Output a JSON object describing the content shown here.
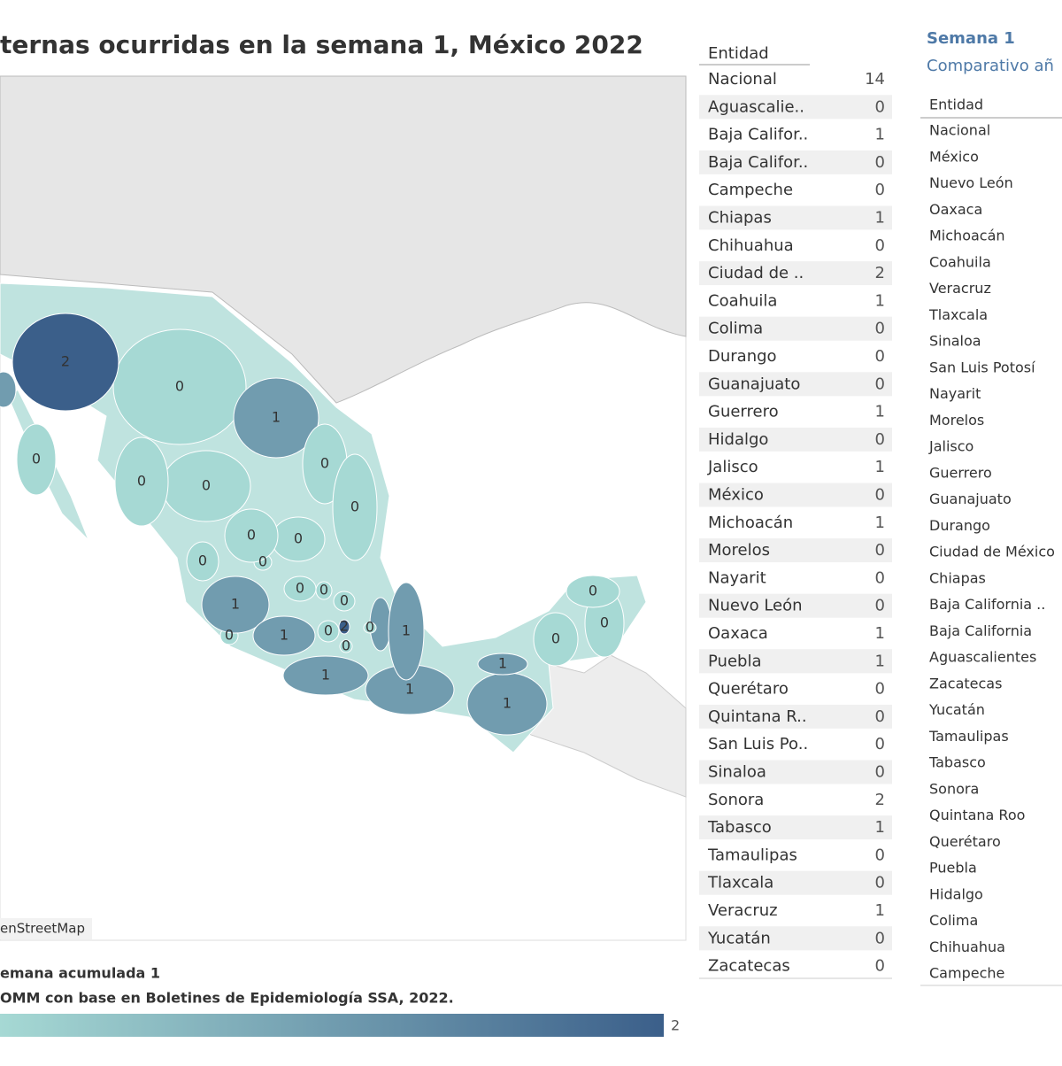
{
  "header": {
    "title": "ternas ocurridas en la semana 1, México 2022"
  },
  "map": {
    "attribution": "enStreetMap",
    "note": "emana acumulada 1",
    "source": "OMM con base en Boletines de Epidemiología SSA, 2022.",
    "legend_max": 2,
    "color_low": "#a6d9d4",
    "color_high": "#3b5f8a"
  },
  "table": {
    "header": "Entidad",
    "rows": [
      [
        "Nacional",
        14
      ],
      [
        "Aguascalie..",
        0
      ],
      [
        "Baja Califor..",
        1
      ],
      [
        "Baja Califor..",
        0
      ],
      [
        "Campeche",
        0
      ],
      [
        "Chiapas",
        1
      ],
      [
        "Chihuahua",
        0
      ],
      [
        "Ciudad de ..",
        2
      ],
      [
        "Coahuila",
        1
      ],
      [
        "Colima",
        0
      ],
      [
        "Durango",
        0
      ],
      [
        "Guanajuato",
        0
      ],
      [
        "Guerrero",
        1
      ],
      [
        "Hidalgo",
        0
      ],
      [
        "Jalisco",
        1
      ],
      [
        "México",
        0
      ],
      [
        "Michoacán",
        1
      ],
      [
        "Morelos",
        0
      ],
      [
        "Nayarit",
        0
      ],
      [
        "Nuevo León",
        0
      ],
      [
        "Oaxaca",
        1
      ],
      [
        "Puebla",
        1
      ],
      [
        "Querétaro",
        0
      ],
      [
        "Quintana R..",
        0
      ],
      [
        "San Luis Po..",
        0
      ],
      [
        "Sinaloa",
        0
      ],
      [
        "Sonora",
        2
      ],
      [
        "Tabasco",
        1
      ],
      [
        "Tamaulipas",
        0
      ],
      [
        "Tlaxcala",
        0
      ],
      [
        "Veracruz",
        1
      ],
      [
        "Yucatán",
        0
      ],
      [
        "Zacatecas",
        0
      ]
    ]
  },
  "comparison": {
    "title": "Semana 1",
    "subtitle": "Comparativo añ",
    "header": "Entidad",
    "rows": [
      "Nacional",
      "México",
      "Nuevo León",
      "Oaxaca",
      "Michoacán",
      "Coahuila",
      "Veracruz",
      "Tlaxcala",
      "Sinaloa",
      "San Luis Potosí",
      "Nayarit",
      "Morelos",
      "Jalisco",
      "Guerrero",
      "Guanajuato",
      "Durango",
      "Ciudad de México",
      "Chiapas",
      "Baja California ..",
      "Baja California",
      "Aguascalientes",
      "Zacatecas",
      "Yucatán",
      "Tamaulipas",
      "Tabasco",
      "Sonora",
      "Quintana Roo",
      "Querétaro",
      "Puebla",
      "Hidalgo",
      "Colima",
      "Chihuahua",
      "Campeche"
    ]
  }
}
